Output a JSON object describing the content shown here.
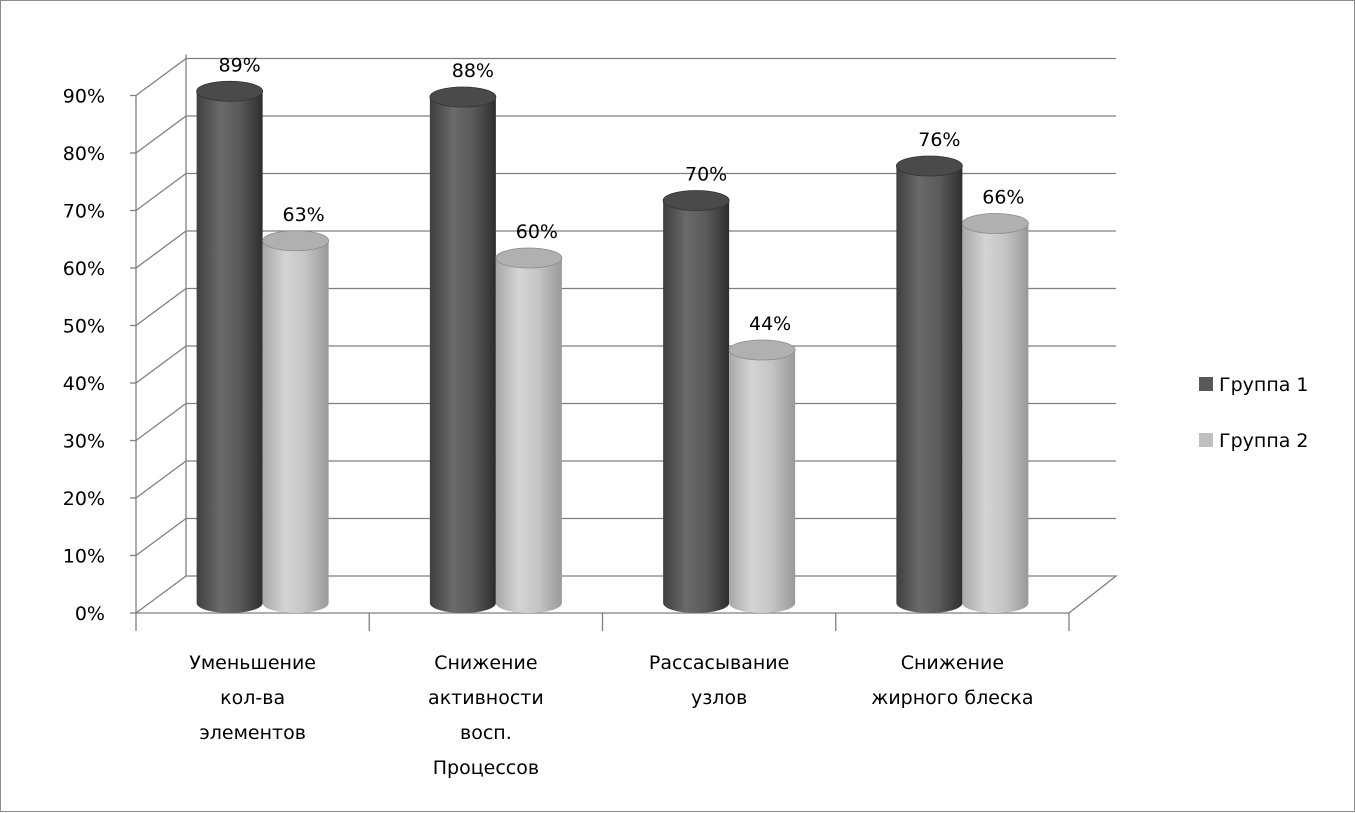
{
  "chart_data": {
    "type": "bar",
    "subtype": "3d-cylinder-clustered",
    "title": "",
    "xlabel": "",
    "ylabel": "",
    "ylim": [
      0,
      0.9
    ],
    "yticks": [
      "0%",
      "10%",
      "20%",
      "30%",
      "40%",
      "50%",
      "60%",
      "70%",
      "80%",
      "90%"
    ],
    "categories": [
      [
        "Уменьшение",
        "кол-ва",
        "элементов"
      ],
      [
        "Снижение",
        "активности",
        "восп.",
        "Процессов"
      ],
      [
        "Рассасывание",
        "узлов"
      ],
      [
        "Снижение",
        "жирного блеска"
      ]
    ],
    "series": [
      {
        "name": "Группа 1",
        "values": [
          0.89,
          0.88,
          0.7,
          0.76
        ],
        "labels": [
          "89%",
          "88%",
          "70%",
          "76%"
        ],
        "color": "#595959"
      },
      {
        "name": "Группа 2",
        "values": [
          0.63,
          0.6,
          0.44,
          0.66
        ],
        "labels": [
          "63%",
          "60%",
          "44%",
          "66%"
        ],
        "color": "#bfbfbf"
      }
    ],
    "grid": true,
    "legend": "right"
  }
}
